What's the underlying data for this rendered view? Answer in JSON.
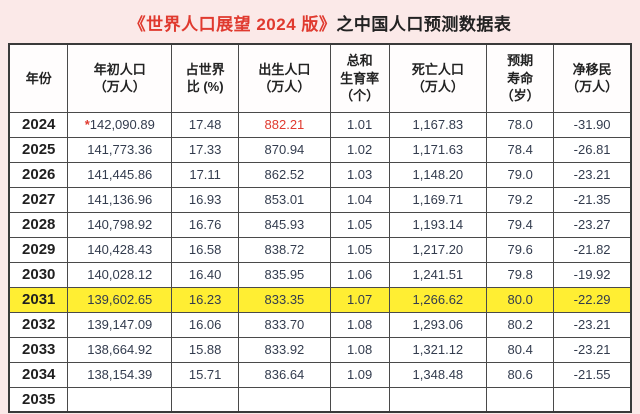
{
  "title": {
    "book": "《世界人口展望 2024 版》",
    "rest": "之中国人口预测数据表"
  },
  "table": {
    "headers": [
      "年份",
      "年初人口\n（万人）",
      "占世界\n比 (%)",
      "出生人口\n（万人）",
      "总和\n生育率\n（个）",
      "死亡人口\n（万人）",
      "预期\n寿命\n（岁）",
      "净移民\n（万人）"
    ],
    "rows": [
      [
        "2024",
        "*142,090.89",
        "17.48",
        "882.21",
        "1.01",
        "1,167.83",
        "78.0",
        "-31.90"
      ],
      [
        "2025",
        "141,773.36",
        "17.33",
        "870.94",
        "1.02",
        "1,171.63",
        "78.4",
        "-26.81"
      ],
      [
        "2026",
        "141,445.86",
        "17.11",
        "862.52",
        "1.03",
        "1,148.20",
        "79.0",
        "-23.21"
      ],
      [
        "2027",
        "141,136.96",
        "16.93",
        "853.01",
        "1.04",
        "1,169.71",
        "79.2",
        "-21.35"
      ],
      [
        "2028",
        "140,798.92",
        "16.76",
        "845.93",
        "1.05",
        "1,193.14",
        "79.4",
        "-23.27"
      ],
      [
        "2029",
        "140,428.43",
        "16.58",
        "838.72",
        "1.05",
        "1,217.20",
        "79.6",
        "-21.82"
      ],
      [
        "2030",
        "140,028.12",
        "16.40",
        "835.95",
        "1.06",
        "1,241.51",
        "79.8",
        "-19.92"
      ],
      [
        "2031",
        "139,602.65",
        "16.23",
        "833.35",
        "1.07",
        "1,266.62",
        "80.0",
        "-22.29"
      ],
      [
        "2032",
        "139,147.09",
        "16.06",
        "833.70",
        "1.08",
        "1,293.06",
        "80.2",
        "-23.21"
      ],
      [
        "2033",
        "138,664.92",
        "15.88",
        "833.92",
        "1.08",
        "1,321.12",
        "80.4",
        "-23.21"
      ],
      [
        "2034",
        "138,154.39",
        "15.71",
        "836.64",
        "1.09",
        "1,348.48",
        "80.6",
        "-21.55"
      ]
    ],
    "partial_row": [
      "2035",
      "",
      "",
      "",
      "",
      "",
      "",
      ""
    ],
    "highlight_year": "2031",
    "red_cell": {
      "row": 0,
      "col": 3
    },
    "colors": {
      "page_bg": "#fbe9e8",
      "highlight": "#ffee33",
      "accent_red": "#e03a2f"
    }
  },
  "chart_data": {
    "type": "table",
    "title": "《世界人口展望 2024 版》之中国人口预测数据表",
    "columns": [
      "年份",
      "年初人口（万人）",
      "占世界比 (%)",
      "出生人口（万人）",
      "总和生育率（个）",
      "死亡人口（万人）",
      "预期寿命（岁）",
      "净移民（万人）"
    ],
    "rows": [
      [
        "2024",
        "142,090.89",
        17.48,
        882.21,
        1.01,
        "1,167.83",
        78.0,
        -31.9
      ],
      [
        "2025",
        "141,773.36",
        17.33,
        870.94,
        1.02,
        "1,171.63",
        78.4,
        -26.81
      ],
      [
        "2026",
        "141,445.86",
        17.11,
        862.52,
        1.03,
        "1,148.20",
        79.0,
        -23.21
      ],
      [
        "2027",
        "141,136.96",
        16.93,
        853.01,
        1.04,
        "1,169.71",
        79.2,
        -21.35
      ],
      [
        "2028",
        "140,798.92",
        16.76,
        845.93,
        1.05,
        "1,193.14",
        79.4,
        -23.27
      ],
      [
        "2029",
        "140,428.43",
        16.58,
        838.72,
        1.05,
        "1,217.20",
        79.6,
        -21.82
      ],
      [
        "2030",
        "140,028.12",
        16.4,
        835.95,
        1.06,
        "1,241.51",
        79.8,
        -19.92
      ],
      [
        "2031",
        "139,602.65",
        16.23,
        833.35,
        1.07,
        "1,266.62",
        80.0,
        -22.29
      ],
      [
        "2032",
        "139,147.09",
        16.06,
        833.7,
        1.08,
        "1,293.06",
        80.2,
        -23.21
      ],
      [
        "2033",
        "138,664.92",
        15.88,
        833.92,
        1.08,
        "1,321.12",
        80.4,
        -23.21
      ],
      [
        "2034",
        "138,154.39",
        15.71,
        836.64,
        1.09,
        "1,348.48",
        80.6,
        -21.55
      ]
    ],
    "highlighted_row_year": "2031"
  }
}
